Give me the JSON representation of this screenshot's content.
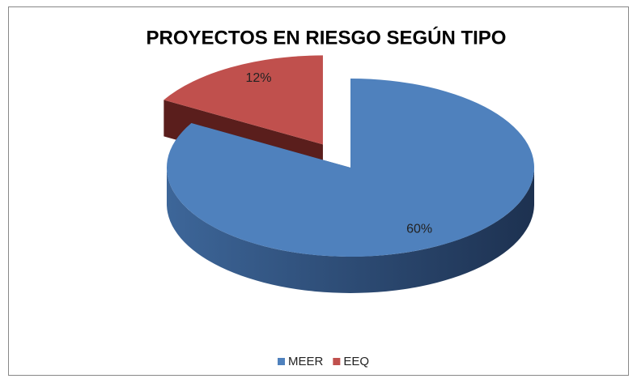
{
  "chart_data": {
    "type": "pie",
    "title": "PROYECTOS EN RIESGO SEGÚN TIPO",
    "categories": [
      "MEER",
      "EEQ"
    ],
    "values": [
      60,
      12
    ],
    "value_labels": [
      "60%",
      "12%"
    ],
    "colors": [
      "#4f81bd",
      "#c0504d"
    ],
    "legend": "bottom",
    "exploded": [
      false,
      true
    ]
  }
}
